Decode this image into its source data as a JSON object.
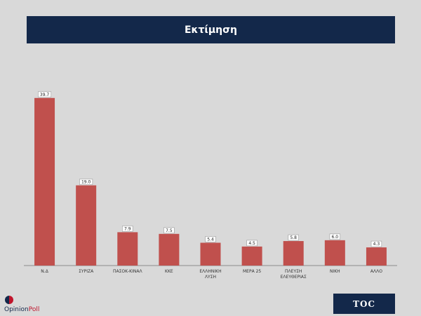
{
  "header": {
    "title": "Εκτίμηση"
  },
  "chart_data": {
    "type": "bar",
    "title": "Εκτίμηση",
    "categories": [
      "Ν.Δ",
      "ΣΥΡΙΖΑ",
      "ΠΑΣΟΚ-ΚΙΝΑΛ",
      "ΚΚΕ",
      "ΕΛΛΗΝΙΚΗ ΛΥΣΗ",
      "ΜΕΡΑ 25",
      "ΠΛΕΥΣΗ ΕΛΕΥΘΕΡΙΑΣ",
      "ΝΙΚΗ",
      "ΑΛΛΟ"
    ],
    "values": [
      39.7,
      19.0,
      7.9,
      7.5,
      5.4,
      4.5,
      5.8,
      6.0,
      4.3
    ],
    "value_labels": [
      "39.7",
      "19.0",
      "7.9",
      "7.5",
      "5.4",
      "4.5",
      "5.8",
      "6.0",
      "4.3"
    ],
    "bar_color": "#c0504d",
    "ylim": [
      0,
      40
    ],
    "grid": false,
    "legend": "none"
  },
  "logos": {
    "opinion_poll": {
      "part1": "Opinion",
      "part2": "Poll"
    },
    "toc": "TOC"
  },
  "colors": {
    "background": "#d9d9d9",
    "header": "#13284a",
    "bar": "#c0504d"
  }
}
